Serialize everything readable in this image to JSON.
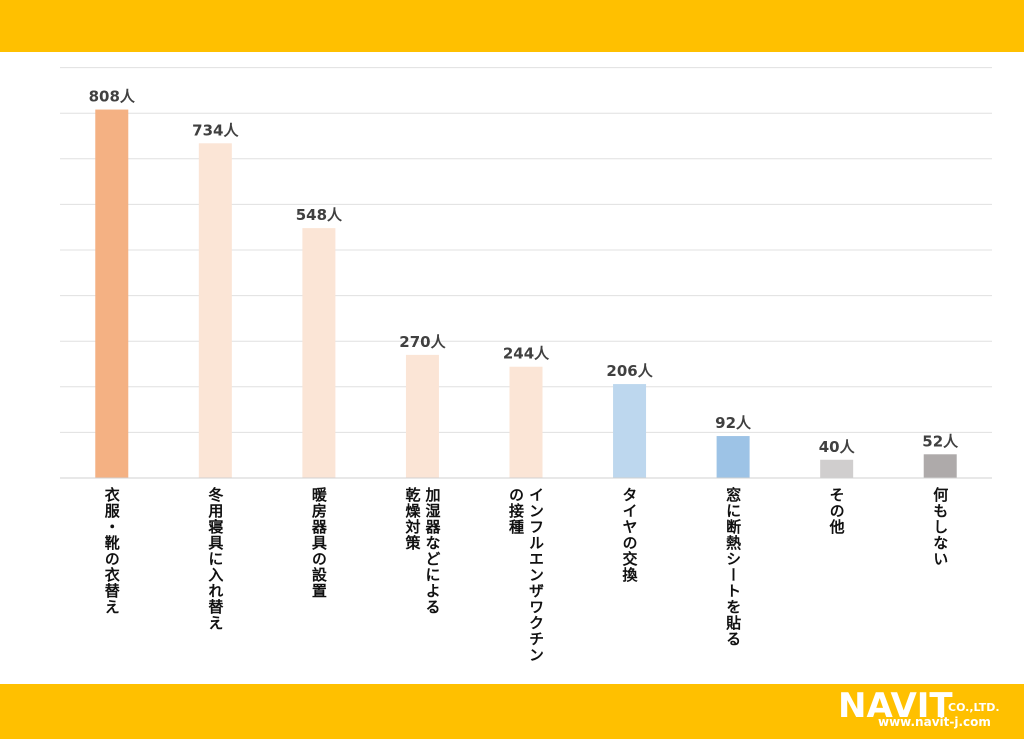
{
  "theme": {
    "band_color": "#FFC000",
    "grid_color": "#E0E0E0",
    "axis_color": "#D0D0D0"
  },
  "logo": {
    "text": "NAVIT",
    "suffix": "CO.,LTD.",
    "url": "www.navit-j.com"
  },
  "chart_data": {
    "type": "bar",
    "title": "",
    "xlabel": "",
    "ylabel": "",
    "ylim": [
      0,
      900
    ],
    "grid": true,
    "unit": "人",
    "categories": [
      "衣服・靴の衣替え",
      "冬用寝具に入れ替え",
      "暖房器具の設置",
      "加湿器などによる乾燥対策",
      "インフルエンザワクチンの接種",
      "タイヤの交換",
      "窓に断熱シートを貼る",
      "その他",
      "何もしない"
    ],
    "category_lines": [
      [
        "衣服・靴の衣替え"
      ],
      [
        "冬用寝具に入れ替え"
      ],
      [
        "暖房器具の設置"
      ],
      [
        "加湿器などによる",
        "乾燥対策"
      ],
      [
        "インフルエンザワクチン",
        "の接種"
      ],
      [
        "タイヤの交換"
      ],
      [
        "窓に断熱シートを貼る"
      ],
      [
        "その他"
      ],
      [
        "何もしない"
      ]
    ],
    "values": [
      808,
      734,
      548,
      270,
      244,
      206,
      92,
      40,
      52
    ],
    "value_labels": [
      "808人",
      "734人",
      "548人",
      "270人",
      "244人",
      "206人",
      "92人",
      "40人",
      "52人"
    ],
    "colors": [
      "#F4B183",
      "#FBE5D6",
      "#FBE5D6",
      "#FBE5D6",
      "#FBE5D6",
      "#BDD7EE",
      "#9DC3E6",
      "#D0CECE",
      "#AEAAAA"
    ]
  }
}
